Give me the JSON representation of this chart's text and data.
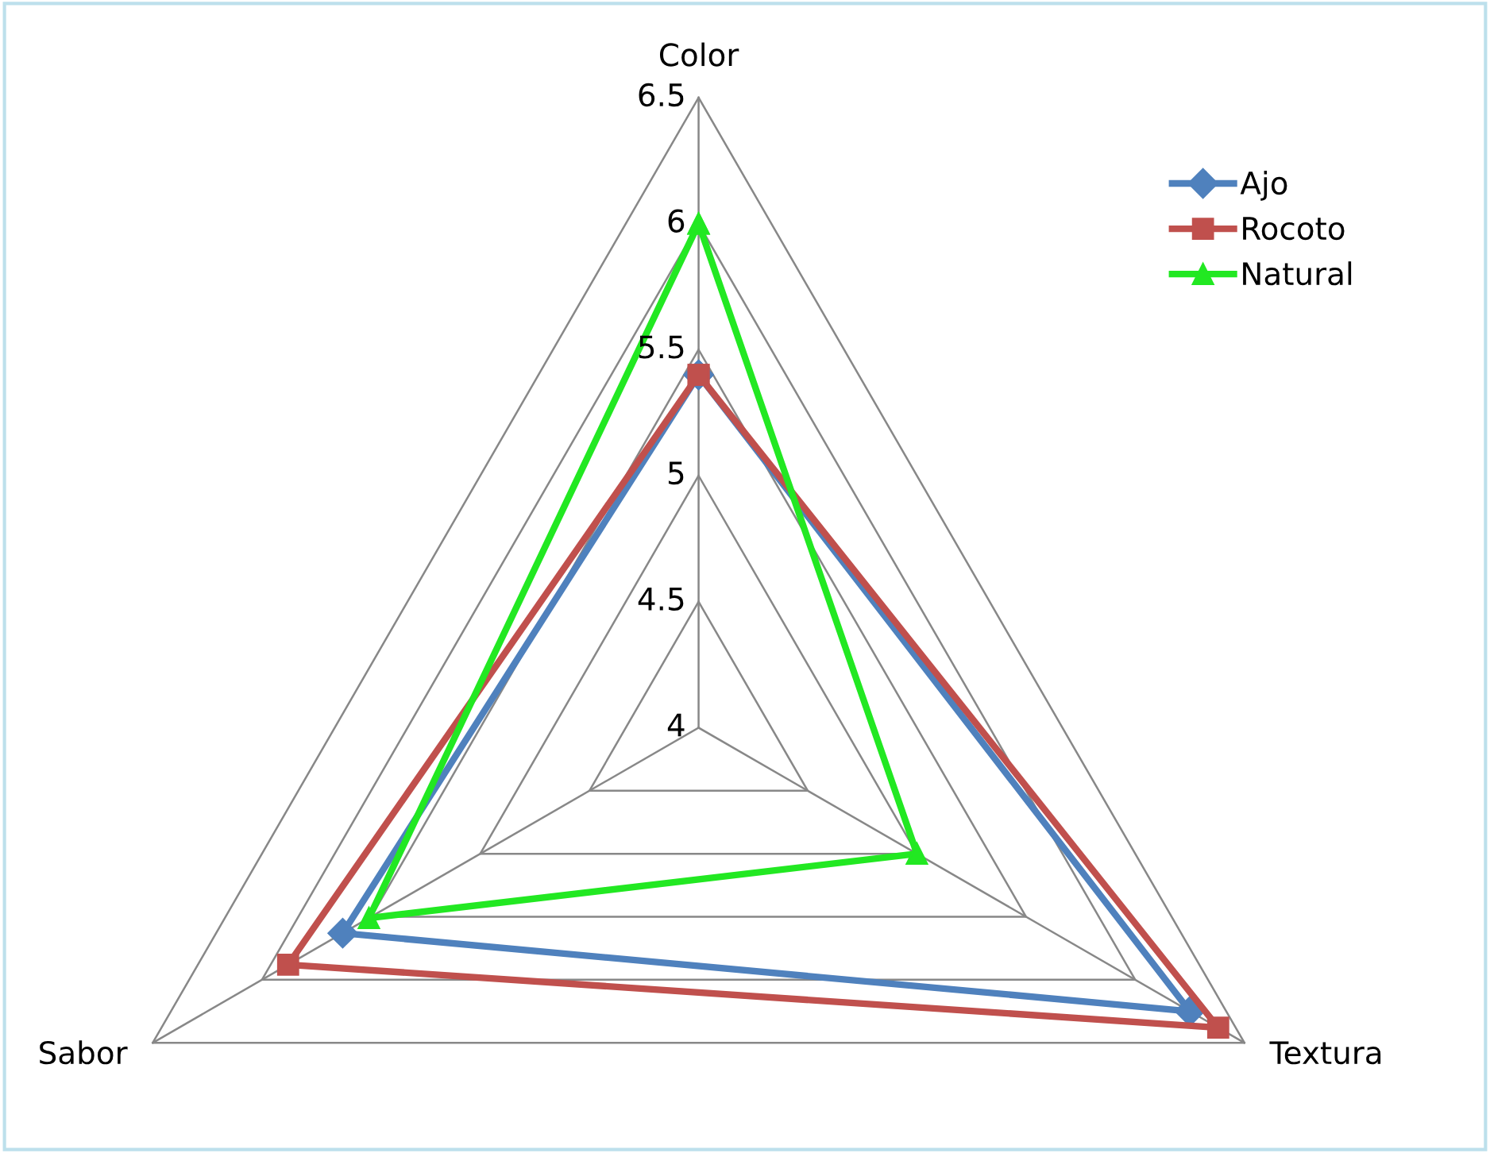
{
  "chart_data": {
    "type": "radar",
    "categories": [
      "Color",
      "Textura",
      "Sabor"
    ],
    "series": [
      {
        "name": "Ajo",
        "color": "#4f81bd",
        "marker": "diamond",
        "values": [
          5.4,
          6.25,
          5.63
        ]
      },
      {
        "name": "Rocoto",
        "color": "#c0504d",
        "marker": "square",
        "values": [
          5.4,
          6.38,
          5.88
        ]
      },
      {
        "name": "Natural",
        "color": "#22e822",
        "marker": "triangle",
        "values": [
          6.0,
          5.0,
          5.51
        ]
      }
    ],
    "ylim": [
      4,
      6.5
    ],
    "yticks": [
      4,
      4.5,
      5,
      5.5,
      6,
      6.5
    ],
    "legend": "right",
    "grid": true
  }
}
